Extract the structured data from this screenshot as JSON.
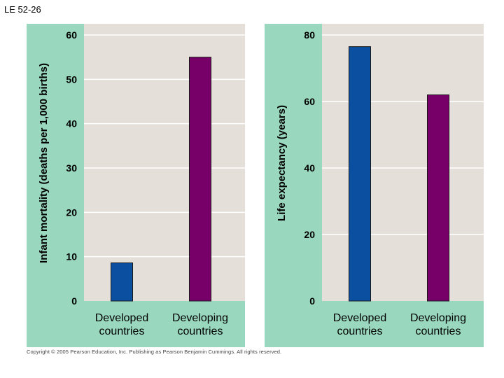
{
  "figure_label": "LE 52-26",
  "copyright": "Copyright © 2005 Pearson Education, Inc. Publishing as Pearson Benjamin Cummings. All rights reserved.",
  "colors": {
    "frame": "#99d8bf",
    "plot_bg": "#e4dfd9",
    "gridline": "#ffffff",
    "developed": "#0a4fa0",
    "developing": "#760068"
  },
  "chart_data": [
    {
      "type": "bar",
      "title": "",
      "ylabel": "Infant mortality (deaths per 1,000 births)",
      "xlabel": "",
      "ylim": [
        0,
        60
      ],
      "yticks": [
        0,
        10,
        20,
        30,
        40,
        50,
        60
      ],
      "grid": true,
      "categories": [
        "Developed countries",
        "Developing countries"
      ],
      "category_lines": [
        [
          "Developed",
          "countries"
        ],
        [
          "Developing",
          "countries"
        ]
      ],
      "values": [
        8.6,
        55
      ]
    },
    {
      "type": "bar",
      "title": "",
      "ylabel": "Life expectancy (years)",
      "xlabel": "",
      "ylim": [
        0,
        80
      ],
      "yticks": [
        0,
        20,
        40,
        60,
        80
      ],
      "grid": true,
      "categories": [
        "Developed countries",
        "Developing countries"
      ],
      "category_lines": [
        [
          "Developed",
          "countries"
        ],
        [
          "Developing",
          "countries"
        ]
      ],
      "values": [
        76.5,
        62
      ]
    }
  ]
}
